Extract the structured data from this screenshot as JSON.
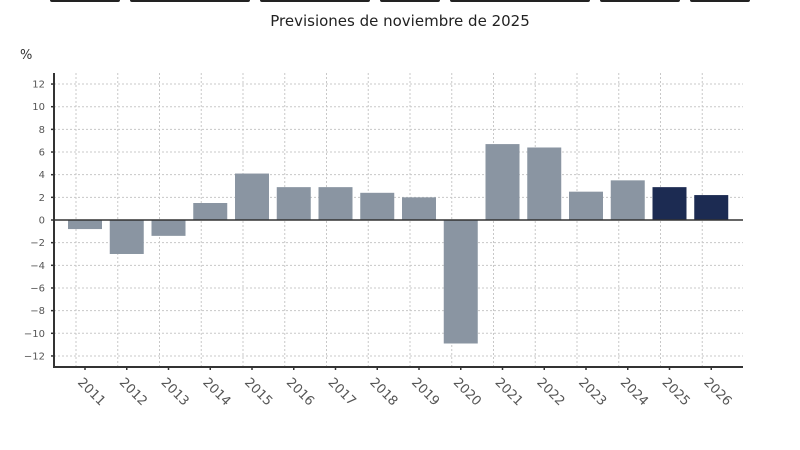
{
  "header": {
    "subtitle": "Previsiones de noviembre de 2025",
    "unit_label": "%"
  },
  "colors": {
    "historical_bar": "#8a95a2",
    "forecast_bar": "#1c2b52",
    "axis": "#333333",
    "grid": "#c8c8c8",
    "tick_label": "#555555"
  },
  "chart_data": {
    "type": "bar",
    "title": "",
    "subtitle": "Previsiones de noviembre de 2025",
    "xlabel": "",
    "ylabel": "%",
    "ylim": [
      -13,
      13
    ],
    "yticks": [
      12,
      10,
      8,
      6,
      4,
      2,
      0,
      -2,
      -4,
      -6,
      -8,
      -10,
      -12
    ],
    "grid": true,
    "categories": [
      "2011",
      "2012",
      "2013",
      "2014",
      "2015",
      "2016",
      "2017",
      "2018",
      "2019",
      "2020",
      "2021",
      "2022",
      "2023",
      "2024",
      "2025",
      "2026"
    ],
    "values": [
      -0.8,
      -3.0,
      -1.4,
      1.5,
      4.1,
      2.9,
      2.9,
      2.4,
      2.0,
      -10.9,
      6.7,
      6.4,
      2.5,
      3.5,
      2.9,
      2.2
    ],
    "series_type": [
      "historical",
      "historical",
      "historical",
      "historical",
      "historical",
      "historical",
      "historical",
      "historical",
      "historical",
      "historical",
      "historical",
      "historical",
      "historical",
      "historical",
      "forecast",
      "forecast"
    ],
    "legend": []
  }
}
